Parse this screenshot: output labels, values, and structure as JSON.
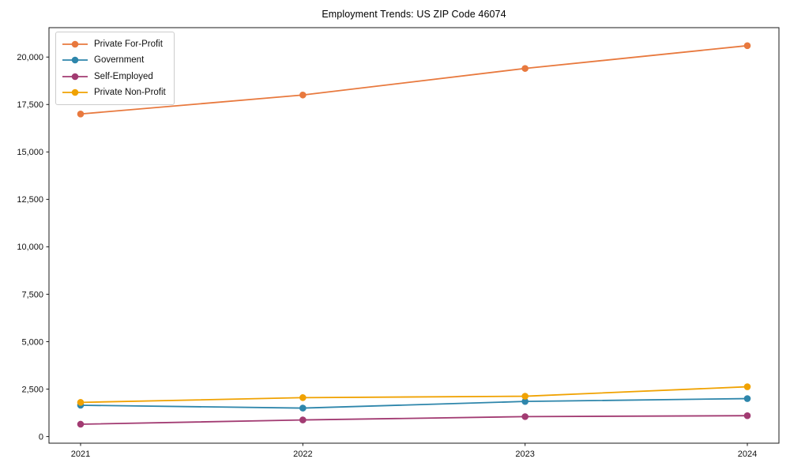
{
  "chart_data": {
    "type": "line",
    "title": "Employment Trends: US ZIP Code 46074",
    "x": [
      "2021",
      "2022",
      "2023",
      "2024"
    ],
    "series": [
      {
        "name": "Private For-Profit",
        "color": "#E8793E",
        "values": [
          17000,
          18000,
          19400,
          20600
        ]
      },
      {
        "name": "Government",
        "color": "#2E86AB",
        "values": [
          1650,
          1500,
          1850,
          2000
        ]
      },
      {
        "name": "Self-Employed",
        "color": "#A23B72",
        "values": [
          650,
          875,
          1050,
          1100
        ]
      },
      {
        "name": "Private Non-Profit",
        "color": "#F0A202",
        "values": [
          1800,
          2050,
          2125,
          2625
        ]
      }
    ],
    "y_ticks": [
      0,
      2500,
      5000,
      7500,
      10000,
      12500,
      15000,
      17500,
      20000
    ],
    "y_tick_labels": [
      "0",
      "2,500",
      "5,000",
      "7,500",
      "10,000",
      "12,500",
      "15,000",
      "17,500",
      "20,000"
    ],
    "ylim": [
      -350,
      21550
    ],
    "xlabel": "",
    "ylabel": "",
    "grid": false,
    "legend_position": "upper-left",
    "marker": "circle",
    "axis_color": "#1a1a1a"
  }
}
